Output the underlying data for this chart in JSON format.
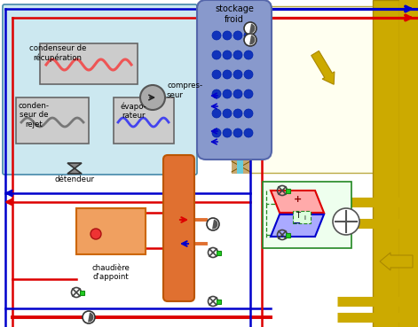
{
  "bg_color": "#ffffff",
  "light_blue_bg": "#cce8f0",
  "light_yellow_bg": "#fffff0",
  "wall_color": "#c8a870",
  "pipe_red": "#dd0000",
  "pipe_blue": "#0000cc",
  "pipe_orange": "#e07030",
  "pipe_yellow": "#ccaa00",
  "pipe_gray": "#808080",
  "pipe_cyan": "#66ccdd",
  "pipe_green": "#228822",
  "coil_pink": "#ee5555",
  "coil_blue": "#4444ee",
  "storage_bg": "#8899cc",
  "storage_dot": "#1133bb",
  "labels": {
    "condenseur_recup": "condenseur de\nrécupération",
    "compresseur": "compres-\nseur",
    "stockage_froid": "stockage\nfroid",
    "condenseur_rejet": "conden-\nseur de\nrejet",
    "evaporateur": "évapo-\nrateur",
    "detendeur": "détendeur",
    "chaudiere": "chaudière\nd'appoint"
  }
}
